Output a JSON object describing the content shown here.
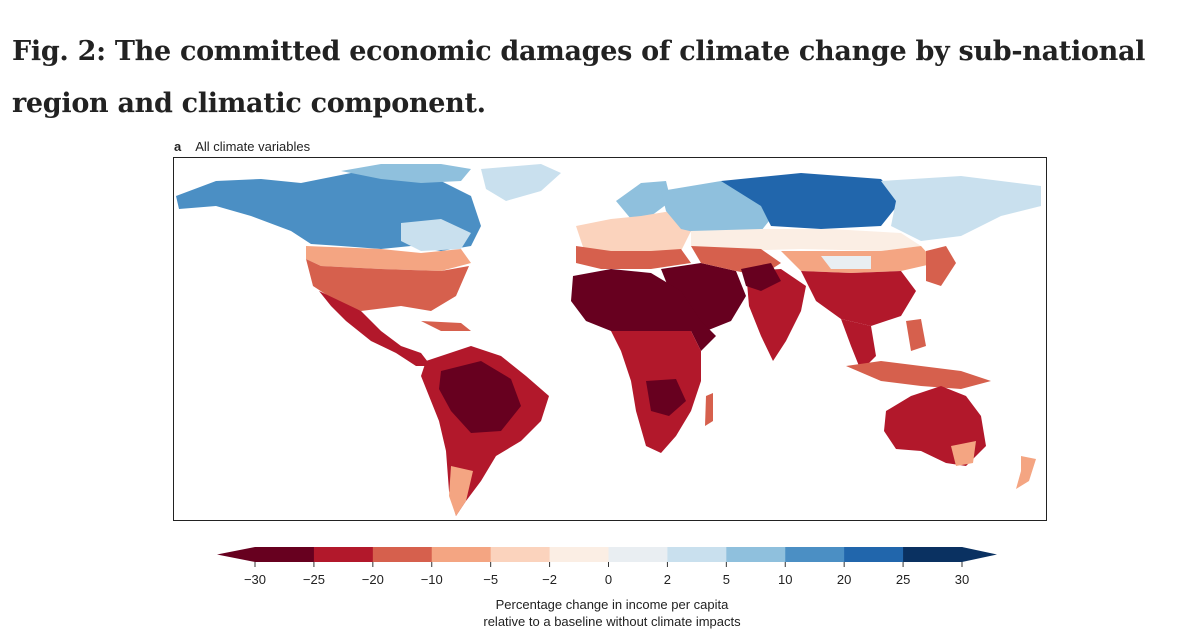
{
  "figure": {
    "title": "Fig. 2: The committed economic damages of climate change by sub-national region and climatic component.",
    "panel": {
      "letter": "a",
      "label": "All climate variables"
    }
  },
  "colorbar": {
    "ticks": [
      "−30",
      "−25",
      "−20",
      "−10",
      "−5",
      "−2",
      "0",
      "2",
      "5",
      "10",
      "20",
      "25",
      "30"
    ],
    "colors": [
      "#67001f",
      "#b2182b",
      "#d6604d",
      "#f4a582",
      "#fbd3bd",
      "#fbeee4",
      "#e9eef2",
      "#c9e0ee",
      "#8fc0dd",
      "#4b8fc4",
      "#2166ac",
      "#0a3161"
    ],
    "label_line1": "Percentage change in income per capita",
    "label_line2": "relative to a baseline without climate impacts",
    "extend": "both"
  }
}
